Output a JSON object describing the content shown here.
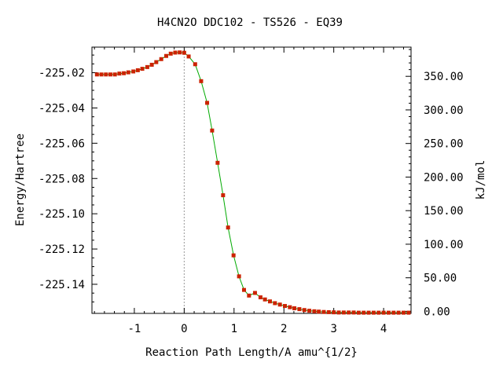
{
  "chart_data": {
    "type": "line",
    "title": "H4CN2O   DDC102 - TS526 - EQ39",
    "xlabel": "Reaction Path Length/A amu^{1/2}",
    "ylabel": "Energy/Hartree",
    "y2label": "kJ/mol",
    "xlim": [
      -1.85,
      4.55
    ],
    "ylim": [
      -225.1565,
      -225.0055
    ],
    "y2lim": [
      -3.0,
      393.5
    ],
    "x_ticks": [
      -1,
      0,
      1,
      2,
      3,
      4
    ],
    "x_tick_labels": [
      "-1",
      "0",
      "1",
      "2",
      "3",
      "4"
    ],
    "y_ticks": [
      -225.02,
      -225.04,
      -225.06,
      -225.08,
      -225.1,
      -225.12,
      -225.14
    ],
    "y_tick_labels": [
      "-225.02",
      "-225.04",
      "-225.06",
      "-225.08",
      "-225.10",
      "-225.12",
      "-225.14"
    ],
    "y2_ticks": [
      0,
      50,
      100,
      150,
      200,
      250,
      300,
      350
    ],
    "y2_tick_labels": [
      "0.00",
      "50.00",
      "100.00",
      "150.00",
      "200.00",
      "250.00",
      "300.00",
      "350.00"
    ],
    "ts_marker_x": 0,
    "line_color": "#00aa00",
    "marker_color": "#cc2200",
    "guide_color": "#999999",
    "series": [
      {
        "x": [
          -1.75,
          -1.66,
          -1.57,
          -1.48,
          -1.39,
          -1.3,
          -1.21,
          -1.12,
          -1.02,
          -0.93,
          -0.84,
          -0.74,
          -0.65,
          -0.56,
          -0.46,
          -0.36,
          -0.27,
          -0.18,
          -0.09,
          0.0,
          0.09,
          0.22,
          0.34,
          0.46,
          0.56,
          0.67,
          0.78,
          0.88,
          0.99,
          1.1,
          1.2,
          1.3,
          1.42,
          1.53,
          1.62,
          1.72,
          1.82,
          1.92,
          2.02,
          2.12,
          2.21,
          2.31,
          2.41,
          2.51,
          2.61,
          2.7,
          2.8,
          2.9,
          3.0,
          3.1,
          3.2,
          3.3,
          3.4,
          3.5,
          3.6,
          3.7,
          3.8,
          3.9,
          4.0,
          4.1,
          4.2,
          4.3,
          4.4,
          4.5
        ],
        "y": [
          -225.021,
          -225.021,
          -225.021,
          -225.021,
          -225.021,
          -225.0205,
          -225.0203,
          -225.0198,
          -225.0193,
          -225.0186,
          -225.0178,
          -225.0168,
          -225.0155,
          -225.014,
          -225.0123,
          -225.0105,
          -225.0092,
          -225.0086,
          -225.0085,
          -225.0087,
          -225.0108,
          -225.0152,
          -225.0248,
          -225.0371,
          -225.0528,
          -225.0711,
          -225.0895,
          -225.1078,
          -225.1236,
          -225.1355,
          -225.1432,
          -225.1464,
          -225.1449,
          -225.1474,
          -225.1486,
          -225.1497,
          -225.1507,
          -225.1515,
          -225.1523,
          -225.153,
          -225.1536,
          -225.1541,
          -225.1546,
          -225.155,
          -225.1553,
          -225.1555,
          -225.1557,
          -225.1558,
          -225.1559,
          -225.156,
          -225.156,
          -225.156,
          -225.156,
          -225.1561,
          -225.1561,
          -225.1561,
          -225.1561,
          -225.1561,
          -225.1561,
          -225.1561,
          -225.1561,
          -225.1561,
          -225.1561,
          -225.1561
        ]
      }
    ]
  }
}
